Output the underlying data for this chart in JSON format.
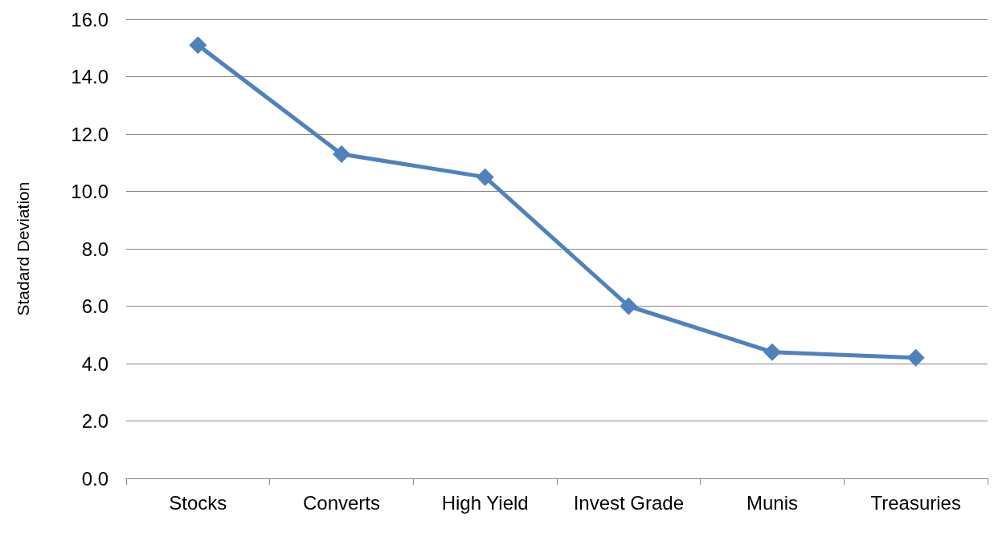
{
  "chart_data": {
    "type": "line",
    "ylabel": "Stadard Deviation",
    "categories": [
      "Stocks",
      "Converts",
      "High Yield",
      "Invest Grade",
      "Munis",
      "Treasuries"
    ],
    "series": [
      {
        "color": "#4f81bd",
        "values": [
          15.1,
          11.3,
          10.5,
          6.0,
          4.4,
          4.2
        ]
      }
    ],
    "ylim": [
      0,
      16
    ],
    "yticks": [
      {
        "value": 0,
        "label": "0.0"
      },
      {
        "value": 2,
        "label": "2.0"
      },
      {
        "value": 4,
        "label": "4.0"
      },
      {
        "value": 6,
        "label": "6.0"
      },
      {
        "value": 8,
        "label": "8.0"
      },
      {
        "value": 10,
        "label": "10.0"
      },
      {
        "value": 12,
        "label": "12.0"
      },
      {
        "value": 14,
        "label": "14.0"
      },
      {
        "value": 16,
        "label": "16.0"
      }
    ],
    "grid": "y",
    "marker": "diamond",
    "line_style": "solid"
  }
}
